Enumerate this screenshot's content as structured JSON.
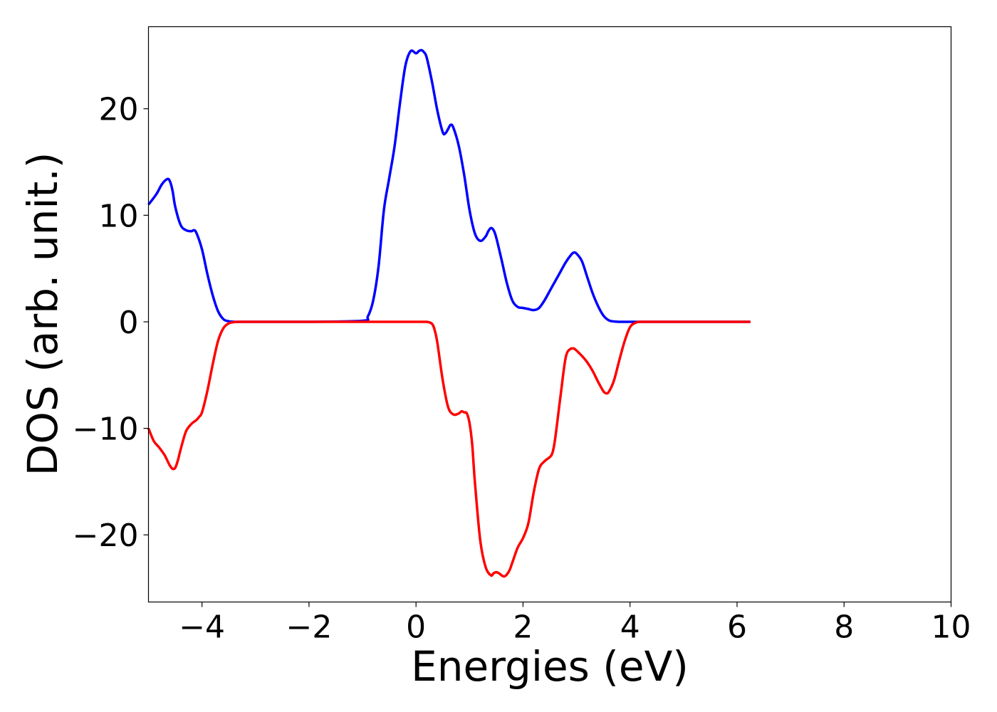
{
  "chart_data": {
    "type": "line",
    "title": "",
    "xlabel": "Energies (eV)",
    "ylabel": "DOS (arb. unit.)",
    "xlim": [
      -5,
      10
    ],
    "ylim": [
      -26.3,
      27.7
    ],
    "grid": false,
    "x_ticks": [
      -4,
      -2,
      0,
      2,
      4,
      6,
      8,
      10
    ],
    "x_tick_labels": [
      "−4",
      "−2",
      "0",
      "2",
      "4",
      "6",
      "8",
      "10"
    ],
    "y_ticks": [
      -20,
      -10,
      0,
      10,
      20
    ],
    "y_tick_labels": [
      "−20",
      "−10",
      "0",
      "10",
      "20"
    ],
    "series": [
      {
        "color": "#0000ff",
        "x": [
          -5.0,
          -4.85,
          -4.75,
          -4.65,
          -4.6,
          -4.55,
          -4.5,
          -4.4,
          -4.3,
          -4.2,
          -4.15,
          -4.1,
          -4.0,
          -3.9,
          -3.8,
          -3.7,
          -3.6,
          -3.5,
          -3.4,
          -3.3,
          -3.0,
          -2.0,
          -1.0,
          -0.9,
          -0.8,
          -0.7,
          -0.6,
          -0.5,
          -0.4,
          -0.3,
          -0.2,
          -0.1,
          0.0,
          0.05,
          0.1,
          0.15,
          0.2,
          0.3,
          0.4,
          0.5,
          0.55,
          0.6,
          0.65,
          0.7,
          0.8,
          0.9,
          1.0,
          1.1,
          1.2,
          1.3,
          1.35,
          1.4,
          1.45,
          1.5,
          1.6,
          1.7,
          1.8,
          1.9,
          2.0,
          2.1,
          2.2,
          2.3,
          2.4,
          2.5,
          2.6,
          2.7,
          2.8,
          2.9,
          2.95,
          3.0,
          3.1,
          3.2,
          3.3,
          3.4,
          3.5,
          3.6,
          3.7,
          3.8,
          4.0,
          4.5,
          5.0,
          6.25
        ],
        "y": [
          11.0,
          12.0,
          12.9,
          13.4,
          13.2,
          12.3,
          10.8,
          9.1,
          8.6,
          8.5,
          8.6,
          8.3,
          6.8,
          4.5,
          2.5,
          1.0,
          0.25,
          0.05,
          0.0,
          0.0,
          0.0,
          0.0,
          0.1,
          0.5,
          2.0,
          5.2,
          10.5,
          13.5,
          16.5,
          20.5,
          24.0,
          25.4,
          25.2,
          25.4,
          25.5,
          25.3,
          24.8,
          22.5,
          19.8,
          17.8,
          17.7,
          18.1,
          18.5,
          18.2,
          16.5,
          13.8,
          10.5,
          8.3,
          7.6,
          8.0,
          8.5,
          8.8,
          8.6,
          7.9,
          5.8,
          3.6,
          2.0,
          1.4,
          1.3,
          1.2,
          1.1,
          1.3,
          2.0,
          2.9,
          3.8,
          4.7,
          5.6,
          6.3,
          6.5,
          6.4,
          5.7,
          4.2,
          2.7,
          1.5,
          0.6,
          0.15,
          0.03,
          0.0,
          0.0,
          0.0,
          0.0,
          0.0
        ]
      },
      {
        "color": "#ff0000",
        "x": [
          -5.0,
          -4.9,
          -4.8,
          -4.7,
          -4.65,
          -4.6,
          -4.55,
          -4.5,
          -4.45,
          -4.4,
          -4.3,
          -4.2,
          -4.1,
          -4.05,
          -4.0,
          -3.9,
          -3.8,
          -3.7,
          -3.6,
          -3.5,
          -3.4,
          -3.3,
          -3.0,
          -2.0,
          -1.0,
          0.0,
          0.2,
          0.3,
          0.35,
          0.4,
          0.5,
          0.6,
          0.7,
          0.8,
          0.85,
          0.9,
          0.95,
          1.0,
          1.05,
          1.1,
          1.2,
          1.3,
          1.4,
          1.45,
          1.5,
          1.55,
          1.6,
          1.65,
          1.7,
          1.75,
          1.8,
          1.9,
          2.0,
          2.1,
          2.2,
          2.3,
          2.4,
          2.5,
          2.55,
          2.6,
          2.7,
          2.8,
          2.9,
          2.95,
          3.0,
          3.1,
          3.2,
          3.3,
          3.4,
          3.5,
          3.55,
          3.6,
          3.7,
          3.8,
          3.9,
          4.0,
          4.1,
          4.2,
          4.5,
          5.0,
          6.25
        ],
        "y": [
          -10.0,
          -11.2,
          -11.8,
          -12.5,
          -13.0,
          -13.5,
          -13.8,
          -13.7,
          -13.0,
          -12.0,
          -10.3,
          -9.6,
          -9.2,
          -8.9,
          -8.5,
          -6.5,
          -4.0,
          -1.8,
          -0.6,
          -0.15,
          -0.03,
          0.0,
          0.0,
          0.0,
          0.0,
          0.0,
          0.0,
          -0.2,
          -0.8,
          -2.0,
          -5.5,
          -8.0,
          -8.7,
          -8.6,
          -8.4,
          -8.5,
          -8.6,
          -9.5,
          -11.5,
          -15.0,
          -20.5,
          -23.0,
          -23.8,
          -23.6,
          -23.5,
          -23.6,
          -23.8,
          -23.9,
          -23.7,
          -23.3,
          -22.6,
          -21.2,
          -20.3,
          -18.9,
          -16.0,
          -13.8,
          -13.1,
          -12.7,
          -12.3,
          -11.0,
          -7.0,
          -3.3,
          -2.5,
          -2.5,
          -2.7,
          -3.2,
          -3.8,
          -4.6,
          -5.6,
          -6.5,
          -6.7,
          -6.6,
          -5.5,
          -3.6,
          -1.8,
          -0.5,
          -0.1,
          0.0,
          0.0,
          0.0,
          0.0
        ]
      }
    ]
  }
}
